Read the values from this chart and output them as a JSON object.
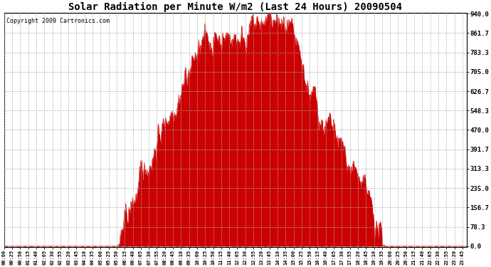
{
  "title": "Solar Radiation per Minute W/m2 (Last 24 Hours) 20090504",
  "copyright": "Copyright 2009 Cartronics.com",
  "y_ticks": [
    0.0,
    78.3,
    156.7,
    235.0,
    313.3,
    391.7,
    470.0,
    548.3,
    626.7,
    705.0,
    783.3,
    861.7,
    940.0
  ],
  "y_max": 940.0,
  "y_min": 0.0,
  "fill_color": "#cc0000",
  "line_color": "#cc0000",
  "bg_color": "#ffffff",
  "grid_color": "#aaaaaa",
  "dashed_line_color": "#ff0000",
  "title_fontsize": 10,
  "copyright_fontsize": 6,
  "tick_label_fontsize": 5,
  "ytick_label_fontsize": 6.5
}
